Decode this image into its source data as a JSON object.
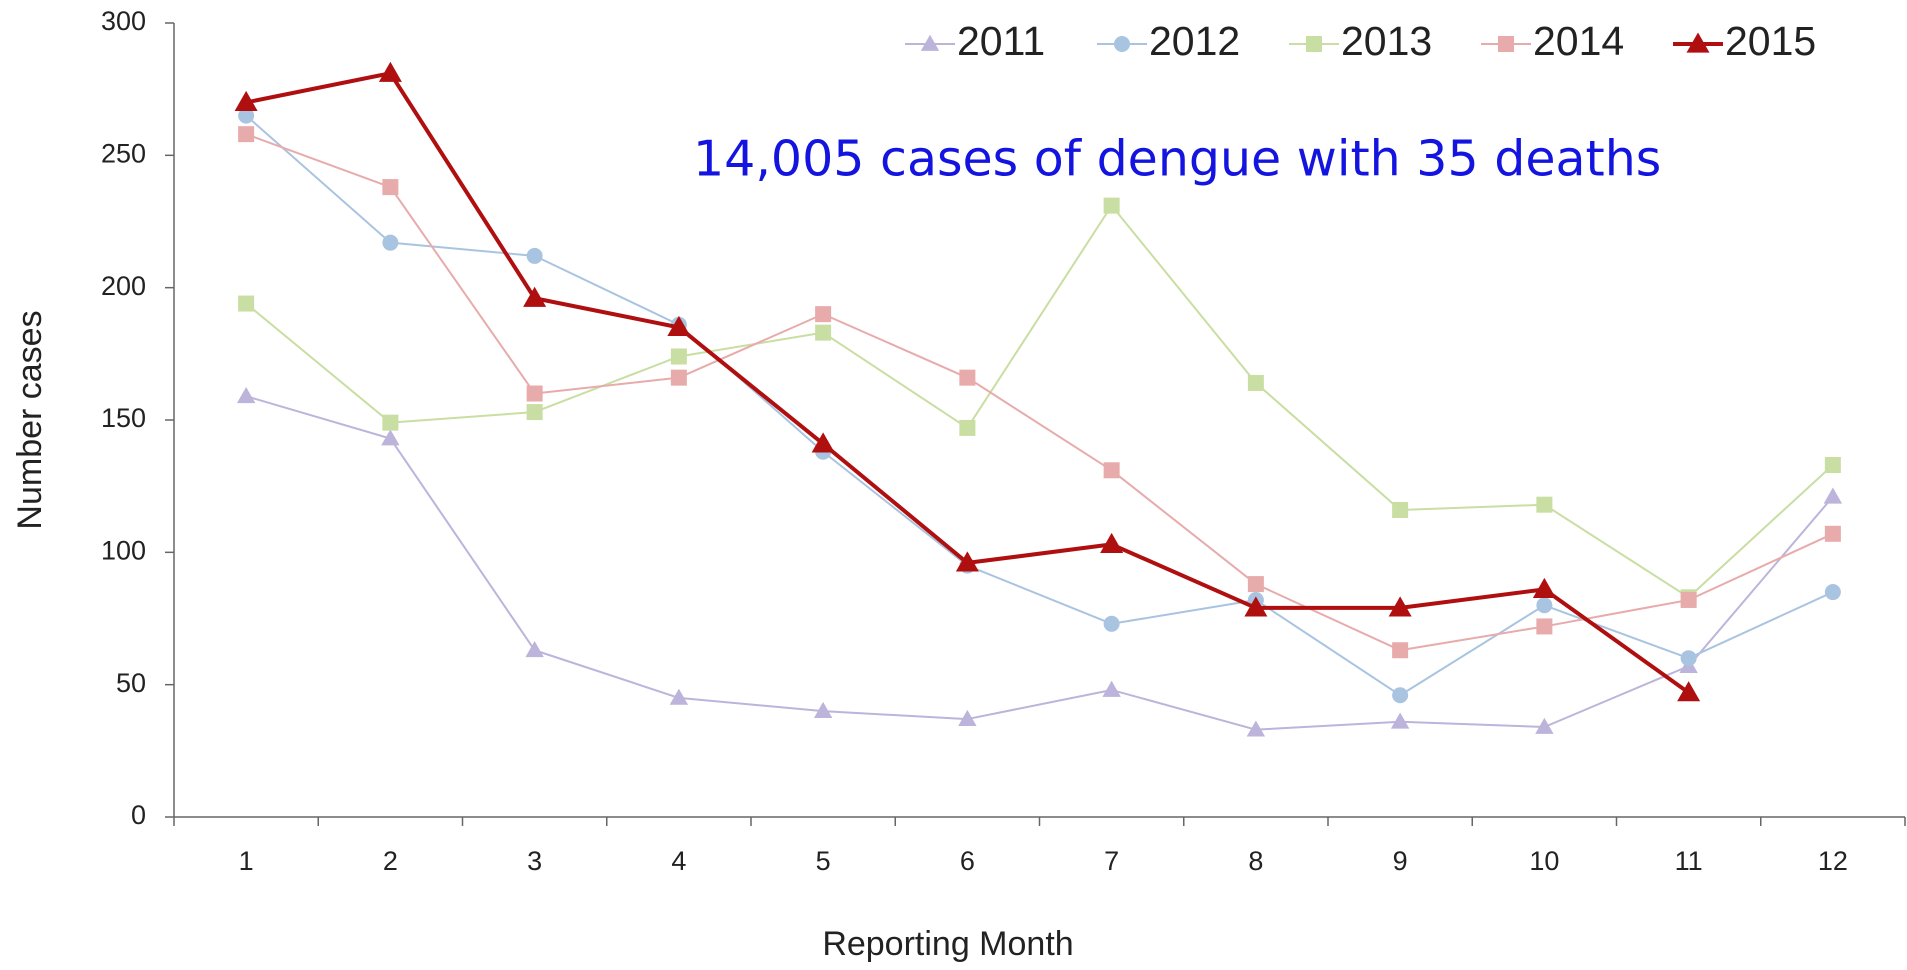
{
  "chart_data": {
    "type": "line",
    "annotation": "14,005 cases of dengue with 35 deaths",
    "x_label": "Reporting Month",
    "y_label": "Number cases",
    "categories": [
      1,
      2,
      3,
      4,
      5,
      6,
      7,
      8,
      9,
      10,
      11,
      12
    ],
    "series": [
      {
        "name": "2011",
        "color": "#bcb4da",
        "marker": "triangle",
        "linewidth": 2,
        "values": [
          159,
          143,
          63,
          45,
          40,
          37,
          48,
          33,
          36,
          34,
          57,
          121
        ]
      },
      {
        "name": "2012",
        "color": "#a9c4e0",
        "marker": "circle",
        "linewidth": 2,
        "values": [
          265,
          217,
          212,
          186,
          138,
          95,
          73,
          82,
          46,
          80,
          60,
          85
        ]
      },
      {
        "name": "2013",
        "color": "#c9dea2",
        "marker": "square",
        "linewidth": 2,
        "values": [
          194,
          149,
          153,
          174,
          183,
          147,
          231,
          164,
          116,
          118,
          83,
          133
        ]
      },
      {
        "name": "2014",
        "color": "#e8abab",
        "marker": "square",
        "linewidth": 2,
        "values": [
          258,
          238,
          160,
          166,
          190,
          166,
          131,
          88,
          63,
          72,
          82,
          107
        ]
      },
      {
        "name": "2015",
        "color": "#b00f10",
        "marker": "triangle",
        "linewidth": 4,
        "values": [
          270,
          281,
          196,
          185,
          141,
          96,
          103,
          79,
          79,
          86,
          47,
          null
        ]
      }
    ],
    "ylim": [
      0,
      300
    ],
    "yticks": [
      0,
      50,
      100,
      150,
      200,
      250,
      300
    ],
    "legend": "top-right"
  }
}
